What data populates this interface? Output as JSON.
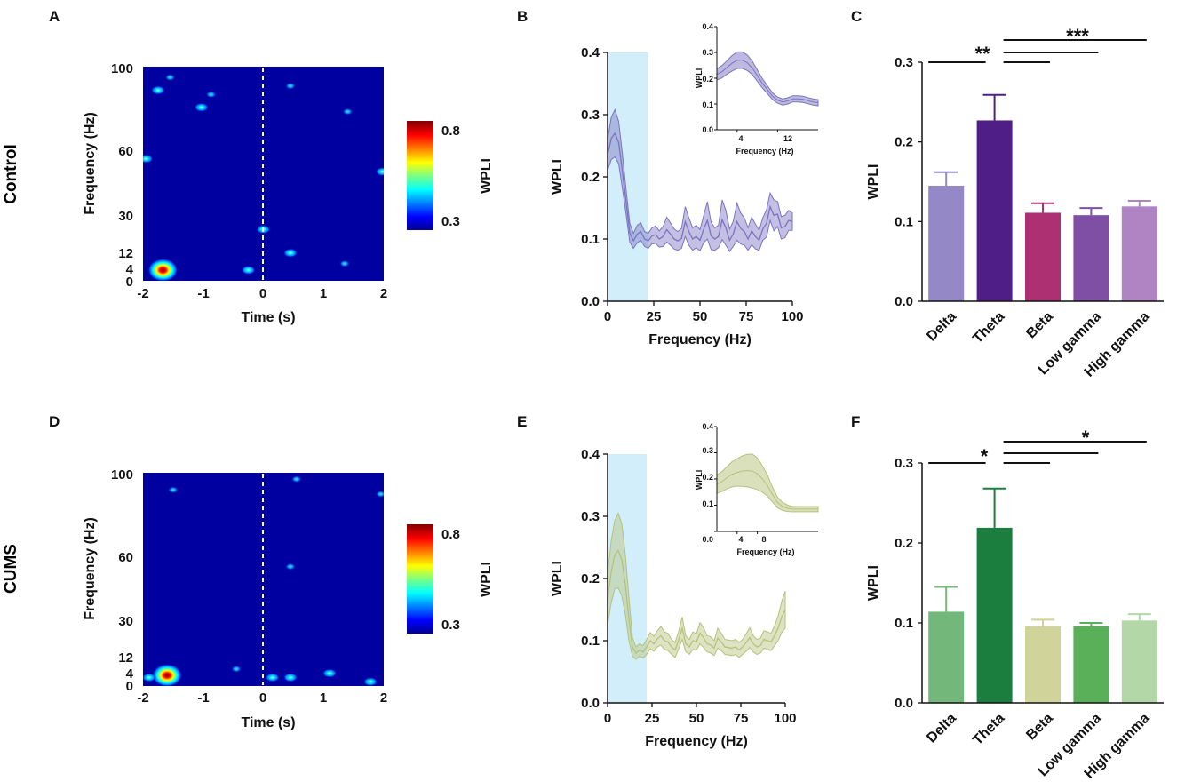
{
  "rows": [
    {
      "row_label": "Control",
      "row_color": "#4b2a85",
      "heatmap_panel": {
        "letter": "A",
        "x_label": "Time (s)",
        "y_label": "Frequency (Hz)",
        "x_ticks": [
          "-2",
          "-1",
          "0",
          "1",
          "2"
        ],
        "y_ticks": [
          "0",
          "4",
          "12",
          "30",
          "60",
          "100"
        ],
        "colorbar_label": "WPLI",
        "colorbar_max": "0.8",
        "colorbar_min": "0.3"
      },
      "line_panel": {
        "letter": "B",
        "color": "#7b73c0",
        "inset_y_ticks": [
          "0.0",
          "0.1",
          "0.2",
          "0.3",
          "0.4"
        ],
        "inset_x_ticks": [
          "4",
          "12"
        ],
        "inset_x_label": "Frequency (Hz)",
        "inset_y_label": "WPLI"
      },
      "bar_panel": {
        "letter": "C",
        "sig_left": "**",
        "sig_right": "***"
      }
    },
    {
      "row_label": "CUMS",
      "row_color": "#2e8b3e",
      "heatmap_panel": {
        "letter": "D",
        "x_label": "Time (s)",
        "y_label": "Frequency (Hz)",
        "x_ticks": [
          "-2",
          "-1",
          "0",
          "1",
          "2"
        ],
        "y_ticks": [
          "0",
          "4",
          "12",
          "30",
          "60",
          "100"
        ],
        "colorbar_label": "WPLI",
        "colorbar_max": "0.8",
        "colorbar_min": "0.3"
      },
      "line_panel": {
        "letter": "E",
        "color": "#b5c27a",
        "inset_y_ticks": [
          "0.0",
          "0.1",
          "0.2",
          "0.3",
          "0.4"
        ],
        "inset_x_ticks": [
          "4",
          "8"
        ],
        "inset_x_label": "Frequency (Hz)",
        "inset_y_label": "WPLI"
      },
      "bar_panel": {
        "letter": "F",
        "sig_left": "*",
        "sig_right": "*"
      }
    }
  ],
  "chart_data": [
    {
      "id": "A",
      "type": "heatmap",
      "x_label": "Time (s)",
      "y_label": "Frequency (Hz)",
      "x_range": [
        -2,
        2
      ],
      "y_range": [
        0,
        100
      ],
      "colorbar_label": "WPLI",
      "colorbar_range": [
        0.3,
        0.8
      ],
      "event_line_time": 0,
      "hotspots": [
        {
          "time": -1.67,
          "freq": 5,
          "wpli": 0.85
        },
        {
          "time": -1.03,
          "freq": 81,
          "wpli": 0.5
        },
        {
          "time": -1.75,
          "freq": 89,
          "wpli": 0.45
        },
        {
          "time": -0.87,
          "freq": 87,
          "wpli": 0.42
        },
        {
          "time": -1.95,
          "freq": 57,
          "wpli": 0.5
        },
        {
          "time": 0.0,
          "freq": 24,
          "wpli": 0.45
        },
        {
          "time": -0.25,
          "freq": 5,
          "wpli": 0.5
        },
        {
          "time": 0.45,
          "freq": 13,
          "wpli": 0.45
        },
        {
          "time": 0.45,
          "freq": 91,
          "wpli": 0.42
        },
        {
          "time": 1.4,
          "freq": 79,
          "wpli": 0.42
        },
        {
          "time": 1.35,
          "freq": 8,
          "wpli": 0.42
        },
        {
          "time": 1.98,
          "freq": 51,
          "wpli": 0.45
        },
        {
          "time": -1.55,
          "freq": 95,
          "wpli": 0.38
        }
      ]
    },
    {
      "id": "B",
      "type": "line",
      "series_name": "Control",
      "x_label": "Frequency (Hz)",
      "y_label": "WPLI",
      "xlim": [
        0,
        100
      ],
      "ylim": [
        0,
        0.4
      ],
      "x_ticks": [
        0,
        25,
        50,
        75,
        100
      ],
      "y_ticks": [
        0.0,
        0.1,
        0.2,
        0.3,
        0.4
      ],
      "shaded_band": [
        0,
        22
      ],
      "x": [
        0,
        2,
        4,
        6,
        8,
        10,
        12,
        14,
        16,
        18,
        20,
        22,
        24,
        26,
        28,
        30,
        32,
        34,
        36,
        38,
        40,
        42,
        44,
        46,
        48,
        50,
        52,
        54,
        56,
        58,
        60,
        62,
        64,
        66,
        68,
        70,
        72,
        74,
        76,
        78,
        80,
        82,
        84,
        86,
        88,
        90,
        92,
        94,
        96,
        98,
        100
      ],
      "mean": [
        0.235,
        0.262,
        0.27,
        0.255,
        0.21,
        0.16,
        0.11,
        0.097,
        0.108,
        0.112,
        0.1,
        0.097,
        0.105,
        0.107,
        0.1,
        0.104,
        0.115,
        0.108,
        0.1,
        0.097,
        0.101,
        0.128,
        0.112,
        0.1,
        0.104,
        0.098,
        0.116,
        0.13,
        0.105,
        0.1,
        0.104,
        0.131,
        0.118,
        0.098,
        0.108,
        0.128,
        0.117,
        0.112,
        0.1,
        0.113,
        0.104,
        0.098,
        0.116,
        0.125,
        0.152,
        0.138,
        0.14,
        0.118,
        0.12,
        0.13,
        0.128
      ],
      "sem": [
        0.025,
        0.034,
        0.038,
        0.034,
        0.028,
        0.02,
        0.015,
        0.012,
        0.014,
        0.014,
        0.012,
        0.012,
        0.013,
        0.014,
        0.013,
        0.016,
        0.02,
        0.018,
        0.016,
        0.015,
        0.016,
        0.024,
        0.022,
        0.018,
        0.018,
        0.017,
        0.022,
        0.03,
        0.022,
        0.018,
        0.018,
        0.032,
        0.028,
        0.018,
        0.02,
        0.03,
        0.025,
        0.022,
        0.018,
        0.022,
        0.02,
        0.016,
        0.018,
        0.022,
        0.022,
        0.025,
        0.02,
        0.018,
        0.018,
        0.016,
        0.014
      ],
      "inset": {
        "x_label": "Frequency (Hz)",
        "y_label": "WPLI",
        "xlim": [
          0,
          20
        ],
        "ylim": [
          0,
          0.4
        ],
        "x_ticks": [
          4,
          12
        ],
        "y_ticks": [
          0.0,
          0.1,
          0.2,
          0.3,
          0.4
        ],
        "x": [
          0,
          1,
          2,
          3,
          4,
          5,
          6,
          7,
          8,
          9,
          10,
          11,
          12,
          13,
          14,
          15,
          16,
          17,
          18,
          19,
          20
        ],
        "mean": [
          0.215,
          0.225,
          0.242,
          0.258,
          0.27,
          0.27,
          0.26,
          0.24,
          0.21,
          0.18,
          0.155,
          0.13,
          0.115,
          0.108,
          0.112,
          0.12,
          0.12,
          0.118,
          0.113,
          0.108,
          0.105
        ],
        "sem": [
          0.022,
          0.024,
          0.026,
          0.03,
          0.032,
          0.032,
          0.03,
          0.026,
          0.022,
          0.018,
          0.015,
          0.013,
          0.012,
          0.012,
          0.012,
          0.012,
          0.012,
          0.012,
          0.012,
          0.012,
          0.012
        ]
      }
    },
    {
      "id": "C",
      "type": "bar",
      "series_name": "Control",
      "categories": [
        "Delta",
        "Theta",
        "Beta",
        "Low gamma",
        "High gamma"
      ],
      "values": [
        0.145,
        0.227,
        0.111,
        0.108,
        0.119
      ],
      "errors": [
        0.017,
        0.032,
        0.012,
        0.009,
        0.007
      ],
      "colors": [
        "#9488c6",
        "#4f1f87",
        "#ad3172",
        "#7f4fa6",
        "#b083c2"
      ],
      "y_label": "WPLI",
      "ylim": [
        0,
        0.3
      ],
      "y_ticks": [
        0.0,
        0.1,
        0.2,
        0.3
      ],
      "significance": [
        {
          "from": "Delta",
          "to": "Theta",
          "label": "**"
        },
        {
          "from": "Theta",
          "to": "Beta",
          "label": ""
        },
        {
          "from": "Theta",
          "to": "Low gamma",
          "label": ""
        },
        {
          "from": "Theta",
          "to": "High gamma",
          "label": "***"
        }
      ]
    },
    {
      "id": "D",
      "type": "heatmap",
      "x_label": "Time (s)",
      "y_label": "Frequency (Hz)",
      "x_range": [
        -2,
        2
      ],
      "y_range": [
        0,
        100
      ],
      "colorbar_label": "WPLI",
      "colorbar_range": [
        0.3,
        0.8
      ],
      "event_line_time": 0,
      "hotspots": [
        {
          "time": -1.6,
          "freq": 5,
          "wpli": 0.85
        },
        {
          "time": -1.9,
          "freq": 4,
          "wpli": 0.5
        },
        {
          "time": -0.45,
          "freq": 8,
          "wpli": 0.42
        },
        {
          "time": 0.15,
          "freq": 4,
          "wpli": 0.45
        },
        {
          "time": 0.45,
          "freq": 4,
          "wpli": 0.45
        },
        {
          "time": 1.1,
          "freq": 6,
          "wpli": 0.5
        },
        {
          "time": 1.78,
          "freq": 2,
          "wpli": 0.45
        },
        {
          "time": 0.45,
          "freq": 56,
          "wpli": 0.4
        },
        {
          "time": -1.5,
          "freq": 92,
          "wpli": 0.38
        },
        {
          "time": 1.95,
          "freq": 90,
          "wpli": 0.38
        },
        {
          "time": 0.55,
          "freq": 97,
          "wpli": 0.38
        }
      ]
    },
    {
      "id": "E",
      "type": "line",
      "series_name": "CUMS",
      "x_label": "Frequency (Hz)",
      "y_label": "WPLI",
      "xlim": [
        0,
        100
      ],
      "ylim": [
        0,
        0.4
      ],
      "x_ticks": [
        0,
        25,
        50,
        75,
        100
      ],
      "y_ticks": [
        0.0,
        0.1,
        0.2,
        0.3,
        0.4
      ],
      "shaded_band": [
        0,
        22
      ],
      "x": [
        0,
        2,
        4,
        6,
        8,
        10,
        12,
        14,
        16,
        18,
        20,
        22,
        24,
        26,
        28,
        30,
        32,
        34,
        36,
        38,
        40,
        42,
        44,
        46,
        48,
        50,
        52,
        54,
        56,
        58,
        60,
        62,
        64,
        66,
        68,
        70,
        72,
        74,
        76,
        78,
        80,
        82,
        84,
        86,
        88,
        90,
        92,
        94,
        96,
        98,
        100
      ],
      "mean": [
        0.165,
        0.21,
        0.238,
        0.245,
        0.23,
        0.19,
        0.135,
        0.09,
        0.08,
        0.085,
        0.082,
        0.09,
        0.1,
        0.095,
        0.103,
        0.108,
        0.1,
        0.098,
        0.09,
        0.085,
        0.101,
        0.12,
        0.095,
        0.09,
        0.1,
        0.098,
        0.112,
        0.105,
        0.095,
        0.093,
        0.088,
        0.104,
        0.098,
        0.09,
        0.089,
        0.088,
        0.09,
        0.085,
        0.09,
        0.097,
        0.105,
        0.095,
        0.09,
        0.092,
        0.102,
        0.1,
        0.098,
        0.108,
        0.12,
        0.138,
        0.15
      ],
      "sem": [
        0.04,
        0.05,
        0.055,
        0.06,
        0.058,
        0.048,
        0.035,
        0.015,
        0.01,
        0.01,
        0.01,
        0.012,
        0.013,
        0.012,
        0.013,
        0.015,
        0.014,
        0.014,
        0.012,
        0.012,
        0.014,
        0.018,
        0.013,
        0.012,
        0.014,
        0.013,
        0.017,
        0.016,
        0.013,
        0.013,
        0.012,
        0.016,
        0.014,
        0.012,
        0.012,
        0.012,
        0.012,
        0.012,
        0.012,
        0.014,
        0.016,
        0.013,
        0.012,
        0.012,
        0.014,
        0.014,
        0.014,
        0.016,
        0.02,
        0.025,
        0.03
      ],
      "inset": {
        "x_label": "Frequency (Hz)",
        "y_label": "WPLI",
        "xlim": [
          0,
          20
        ],
        "ylim": [
          0,
          0.4
        ],
        "x_ticks": [
          4,
          8
        ],
        "y_ticks": [
          0.0,
          0.1,
          0.2,
          0.3,
          0.4
        ],
        "x": [
          0,
          1,
          2,
          3,
          4,
          5,
          6,
          7,
          8,
          9,
          10,
          11,
          12,
          13,
          14,
          15,
          16,
          17,
          18,
          19,
          20
        ],
        "mean": [
          0.18,
          0.19,
          0.205,
          0.218,
          0.225,
          0.23,
          0.232,
          0.23,
          0.22,
          0.2,
          0.175,
          0.14,
          0.11,
          0.095,
          0.088,
          0.085,
          0.085,
          0.085,
          0.085,
          0.085,
          0.085
        ],
        "sem": [
          0.035,
          0.038,
          0.042,
          0.048,
          0.052,
          0.058,
          0.062,
          0.065,
          0.06,
          0.05,
          0.04,
          0.028,
          0.02,
          0.015,
          0.012,
          0.01,
          0.01,
          0.01,
          0.01,
          0.01,
          0.01
        ]
      }
    },
    {
      "id": "F",
      "type": "bar",
      "series_name": "CUMS",
      "categories": [
        "Delta",
        "Theta",
        "Beta",
        "Low gamma",
        "High gamma"
      ],
      "values": [
        0.114,
        0.219,
        0.096,
        0.096,
        0.103
      ],
      "errors": [
        0.031,
        0.049,
        0.008,
        0.004,
        0.008
      ],
      "colors": [
        "#74b77a",
        "#1c7e3e",
        "#d0d49b",
        "#5aaf59",
        "#b3d7a6"
      ],
      "y_label": "WPLI",
      "ylim": [
        0,
        0.3
      ],
      "y_ticks": [
        0.0,
        0.1,
        0.2,
        0.3
      ],
      "significance": [
        {
          "from": "Delta",
          "to": "Theta",
          "label": "*"
        },
        {
          "from": "Theta",
          "to": "Beta",
          "label": ""
        },
        {
          "from": "Theta",
          "to": "Low gamma",
          "label": ""
        },
        {
          "from": "Theta",
          "to": "High gamma",
          "label": "*"
        }
      ]
    }
  ]
}
